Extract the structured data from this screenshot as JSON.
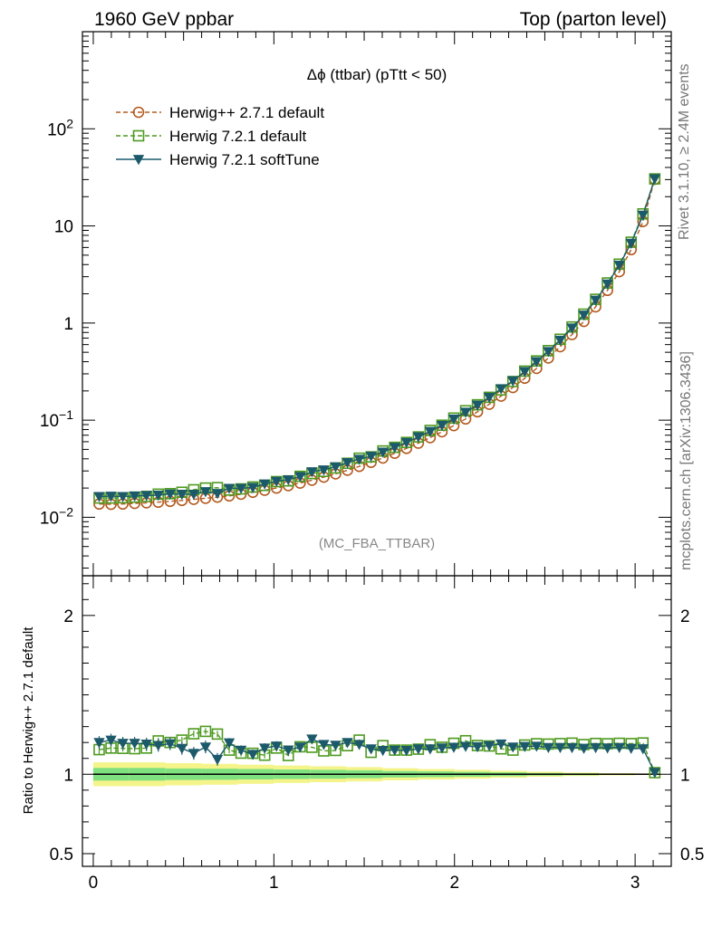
{
  "header": {
    "left": "1960 GeV ppbar",
    "right": "Top (parton level)"
  },
  "side_labels": {
    "rivet": "Rivet 3.1.10, ≥ 2.4M events",
    "mcplots": "mcplots.cern.ch [arXiv:1306.3436]"
  },
  "chart_data": [
    {
      "type": "line",
      "title": "Δϕ (ttbar) (pTtt < 50)",
      "annotation": "(MC_FBA_TTBAR)",
      "yscale": "log",
      "xlim": [
        -0.06,
        3.2
      ],
      "ylim": [
        0.0025,
        1000
      ],
      "y_ticks": [
        {
          "value": 0.01,
          "label": "10^-2"
        },
        {
          "value": 0.1,
          "label": "10^-1"
        },
        {
          "value": 1,
          "label": "1"
        },
        {
          "value": 10,
          "label": "10"
        },
        {
          "value": 100,
          "label": "10^2"
        }
      ],
      "legend_position": "top-left",
      "x": [
        0.0327,
        0.0982,
        0.1636,
        0.2291,
        0.2945,
        0.36,
        0.4254,
        0.4909,
        0.5563,
        0.6218,
        0.6872,
        0.7527,
        0.8181,
        0.8836,
        0.949,
        1.0145,
        1.0799,
        1.1454,
        1.2108,
        1.2763,
        1.3417,
        1.4072,
        1.4726,
        1.5381,
        1.6035,
        1.669,
        1.7344,
        1.7999,
        1.8653,
        1.9308,
        1.9962,
        2.0617,
        2.1271,
        2.1926,
        2.258,
        2.3235,
        2.3889,
        2.4544,
        2.5198,
        2.5853,
        2.6507,
        2.7162,
        2.7816,
        2.8471,
        2.9125,
        2.978,
        3.0434,
        3.1089
      ],
      "series": [
        {
          "name": "Herwig++ 2.7.1 default",
          "color": "#b35a1f",
          "marker": "circle-open",
          "dash": true,
          "values": [
            0.0137,
            0.0136,
            0.0137,
            0.0139,
            0.0141,
            0.0143,
            0.0146,
            0.0149,
            0.0153,
            0.0157,
            0.0161,
            0.0166,
            0.0173,
            0.0181,
            0.019,
            0.02,
            0.0212,
            0.0225,
            0.0241,
            0.0259,
            0.028,
            0.0305,
            0.0334,
            0.0368,
            0.0408,
            0.0456,
            0.0512,
            0.058,
            0.0661,
            0.0759,
            0.0879,
            0.103,
            0.122,
            0.146,
            0.177,
            0.217,
            0.27,
            0.341,
            0.437,
            0.571,
            0.762,
            1.04,
            1.47,
            2.17,
            3.38,
            5.7,
            11.1,
            30.2
          ]
        },
        {
          "name": "Herwig 7.2.1 default",
          "color": "#4d9a1f",
          "marker": "square-open",
          "dash": true,
          "values": [
            0.0158,
            0.0158,
            0.0159,
            0.0161,
            0.0164,
            0.0173,
            0.0175,
            0.0181,
            0.0192,
            0.02,
            0.0202,
            0.0191,
            0.0196,
            0.0205,
            0.0213,
            0.0233,
            0.0237,
            0.0264,
            0.0282,
            0.0297,
            0.0322,
            0.036,
            0.0406,
            0.0419,
            0.0482,
            0.0525,
            0.059,
            0.0672,
            0.0784,
            0.0888,
            0.105,
            0.125,
            0.144,
            0.172,
            0.205,
            0.25,
            0.32,
            0.407,
            0.52,
            0.681,
            0.911,
            1.235,
            1.756,
            2.586,
            4.04,
            6.8,
            13.3,
            30.5
          ]
        },
        {
          "name": "Herwig 7.2.1 softTune",
          "color": "#1c5a6b",
          "marker": "triangle-down-filled",
          "dash": false,
          "values": [
            0.0164,
            0.0165,
            0.0164,
            0.0166,
            0.0168,
            0.0169,
            0.0174,
            0.0173,
            0.0173,
            0.0184,
            0.0176,
            0.0199,
            0.0199,
            0.0203,
            0.0221,
            0.0235,
            0.0244,
            0.0263,
            0.0295,
            0.0308,
            0.0331,
            0.0366,
            0.0396,
            0.0426,
            0.0469,
            0.0525,
            0.0589,
            0.0673,
            0.0767,
            0.0885,
            0.1028,
            0.121,
            0.143,
            0.172,
            0.211,
            0.254,
            0.317,
            0.401,
            0.51,
            0.667,
            0.89,
            1.21,
            1.72,
            2.53,
            3.95,
            6.63,
            12.9,
            30.6
          ]
        }
      ]
    },
    {
      "type": "line",
      "ylabel": "Ratio to Herwig++ 2.7.1 default",
      "xlim": [
        -0.06,
        3.2
      ],
      "ylim": [
        0.42,
        2.25
      ],
      "x_ticks": [
        {
          "value": 0,
          "label": "0"
        },
        {
          "value": 1,
          "label": "1"
        },
        {
          "value": 2,
          "label": "2"
        },
        {
          "value": 3,
          "label": "3"
        }
      ],
      "y_ticks": [
        {
          "value": 0.5,
          "label": "0.5"
        },
        {
          "value": 1,
          "label": "1"
        },
        {
          "value": 2,
          "label": "2"
        }
      ],
      "bands": {
        "inner_color": "#7fe07f",
        "outer_color": "#f4f48a",
        "x_edges": [
          0,
          0.2,
          0.4,
          0.6,
          0.8,
          1.0,
          1.2,
          1.4,
          1.6,
          1.8,
          2.0,
          2.2,
          2.4,
          2.6,
          2.8,
          3.0,
          3.1416
        ],
        "inner_half_width": [
          0.04,
          0.04,
          0.036,
          0.035,
          0.033,
          0.03,
          0.028,
          0.025,
          0.02,
          0.018,
          0.015,
          0.012,
          0.008,
          0.006,
          0.004,
          0.003
        ],
        "outer_half_width": [
          0.075,
          0.075,
          0.07,
          0.066,
          0.06,
          0.055,
          0.05,
          0.045,
          0.038,
          0.033,
          0.028,
          0.022,
          0.016,
          0.011,
          0.007,
          0.005
        ]
      },
      "series": [
        {
          "name": "Herwig 7.2.1 default",
          "color": "#4d9a1f",
          "marker": "square-open",
          "dash": true,
          "values": [
            1.155,
            1.165,
            1.163,
            1.161,
            1.165,
            1.21,
            1.2,
            1.215,
            1.255,
            1.27,
            1.253,
            1.152,
            1.133,
            1.132,
            1.12,
            1.165,
            1.118,
            1.173,
            1.17,
            1.147,
            1.15,
            1.18,
            1.215,
            1.138,
            1.18,
            1.152,
            1.152,
            1.158,
            1.186,
            1.17,
            1.195,
            1.211,
            1.181,
            1.178,
            1.16,
            1.152,
            1.184,
            1.192,
            1.19,
            1.193,
            1.196,
            1.187,
            1.194,
            1.192,
            1.195,
            1.193,
            1.197,
            1.01
          ],
          "errors": [
            0.03,
            0.03,
            0.02,
            0.02,
            0.02,
            0.02,
            0.02,
            0.02,
            0.02,
            0.02,
            0.02,
            0.02,
            0.02,
            0.02,
            0.02,
            0.02,
            0.01,
            0.01,
            0.01,
            0.01,
            0.01,
            0.01,
            0.01,
            0.01,
            0.01,
            0.01,
            0.01,
            0.01,
            0.01,
            0.01,
            0.01,
            0.01,
            0.01,
            0.01,
            0.01,
            0.01,
            0.01,
            0.01,
            0.01,
            0.01,
            0.01,
            0.01,
            0.01,
            0.01,
            0.01,
            0.01,
            0.01,
            0.01
          ]
        },
        {
          "name": "Herwig 7.2.1 softTune",
          "color": "#1c5a6b",
          "marker": "triangle-down-filled",
          "dash": false,
          "values": [
            1.2,
            1.215,
            1.195,
            1.195,
            1.19,
            1.182,
            1.192,
            1.163,
            1.132,
            1.172,
            1.094,
            1.198,
            1.152,
            1.125,
            1.165,
            1.178,
            1.153,
            1.172,
            1.222,
            1.188,
            1.183,
            1.2,
            1.188,
            1.16,
            1.15,
            1.152,
            1.15,
            1.16,
            1.16,
            1.166,
            1.17,
            1.176,
            1.174,
            1.18,
            1.191,
            1.172,
            1.175,
            1.177,
            1.169,
            1.169,
            1.168,
            1.164,
            1.168,
            1.166,
            1.169,
            1.164,
            1.161,
            1.011
          ],
          "errors": [
            0.04,
            0.04,
            0.04,
            0.04,
            0.04,
            0.04,
            0.04,
            0.04,
            0.04,
            0.04,
            0.04,
            0.03,
            0.03,
            0.03,
            0.03,
            0.03,
            0.02,
            0.02,
            0.02,
            0.02,
            0.02,
            0.02,
            0.02,
            0.02,
            0.02,
            0.02,
            0.02,
            0.02,
            0.01,
            0.01,
            0.01,
            0.01,
            0.01,
            0.01,
            0.01,
            0.01,
            0.01,
            0.01,
            0.01,
            0.01,
            0.01,
            0.01,
            0.01,
            0.01,
            0.01,
            0.01,
            0.01,
            0.01
          ]
        }
      ]
    }
  ]
}
